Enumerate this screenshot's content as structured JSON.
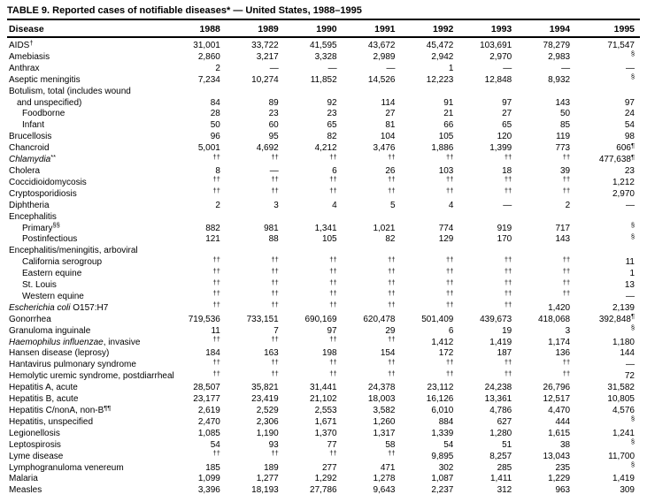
{
  "title": "TABLE 9. Reported cases of notifiable diseases* — United States, 1988–1995",
  "colors": {
    "text": "#000000",
    "background": "#ffffff",
    "rule": "#000000"
  },
  "table": {
    "columns": [
      "Disease",
      "1988",
      "1989",
      "1990",
      "1991",
      "1992",
      "1993",
      "1994",
      "1995"
    ],
    "rows": [
      {
        "label": "AIDS†",
        "values": [
          "31,001",
          "33,722",
          "41,595",
          "43,672",
          "45,472",
          "103,691",
          "78,279",
          "71,547"
        ]
      },
      {
        "label": "Amebiasis",
        "values": [
          "2,860",
          "3,217",
          "3,328",
          "2,989",
          "2,942",
          "2,970",
          "2,983",
          "§"
        ]
      },
      {
        "label": "Anthrax",
        "values": [
          "2",
          "—",
          "—",
          "—",
          "1",
          "—",
          "—",
          "—"
        ]
      },
      {
        "label": "Aseptic meningitis",
        "values": [
          "7,234",
          "10,274",
          "11,852",
          "14,526",
          "12,223",
          "12,848",
          "8,932",
          "§"
        ]
      },
      {
        "label": "Botulism, total (includes wound",
        "label2": "and unspecified)",
        "values": [
          "84",
          "89",
          "92",
          "114",
          "91",
          "97",
          "143",
          "97"
        ]
      },
      {
        "label": "Foodborne",
        "indent": 1,
        "values": [
          "28",
          "23",
          "23",
          "27",
          "21",
          "27",
          "50",
          "24"
        ]
      },
      {
        "label": "Infant",
        "indent": 1,
        "values": [
          "50",
          "60",
          "65",
          "81",
          "66",
          "65",
          "85",
          "54"
        ]
      },
      {
        "label": "Brucellosis",
        "values": [
          "96",
          "95",
          "82",
          "104",
          "105",
          "120",
          "119",
          "98"
        ]
      },
      {
        "label": "Chancroid",
        "values": [
          "5,001",
          "4,692",
          "4,212",
          "3,476",
          "1,886",
          "1,399",
          "773",
          "606¶"
        ]
      },
      {
        "italic": "Chlamydia",
        "label": "**",
        "values": [
          "††",
          "††",
          "††",
          "††",
          "††",
          "††",
          "††",
          "477,638¶"
        ]
      },
      {
        "label": "Cholera",
        "values": [
          "8",
          "—",
          "6",
          "26",
          "103",
          "18",
          "39",
          "23"
        ]
      },
      {
        "label": "Coccidioidomycosis",
        "values": [
          "††",
          "††",
          "††",
          "††",
          "††",
          "††",
          "††",
          "1,212"
        ]
      },
      {
        "label": "Cryptosporidiosis",
        "values": [
          "††",
          "††",
          "††",
          "††",
          "††",
          "††",
          "††",
          "2,970"
        ]
      },
      {
        "label": "Diphtheria",
        "values": [
          "2",
          "3",
          "4",
          "5",
          "4",
          "—",
          "2",
          "—"
        ]
      },
      {
        "label": "Encephalitis",
        "values": []
      },
      {
        "label": "Primary§§",
        "indent": 1,
        "values": [
          "882",
          "981",
          "1,341",
          "1,021",
          "774",
          "919",
          "717",
          "§"
        ]
      },
      {
        "label": "Postinfectious",
        "indent": 1,
        "values": [
          "121",
          "88",
          "105",
          "82",
          "129",
          "170",
          "143",
          "§"
        ]
      },
      {
        "label": "Encephalitis/meningitis, arboviral",
        "values": []
      },
      {
        "label": "California serogroup",
        "indent": 1,
        "values": [
          "††",
          "††",
          "††",
          "††",
          "††",
          "††",
          "††",
          "11"
        ]
      },
      {
        "label": "Eastern equine",
        "indent": 1,
        "values": [
          "††",
          "††",
          "††",
          "††",
          "††",
          "††",
          "††",
          "1"
        ]
      },
      {
        "label": "St. Louis",
        "indent": 1,
        "values": [
          "††",
          "††",
          "††",
          "††",
          "††",
          "††",
          "††",
          "13"
        ]
      },
      {
        "label": "Western equine",
        "indent": 1,
        "values": [
          "††",
          "††",
          "††",
          "††",
          "††",
          "††",
          "††",
          "—"
        ]
      },
      {
        "italic": "Escherichia coli",
        "label": " O157:H7",
        "values": [
          "††",
          "††",
          "††",
          "††",
          "††",
          "††",
          "1,420",
          "2,139"
        ]
      },
      {
        "label": "Gonorrhea",
        "values": [
          "719,536",
          "733,151",
          "690,169",
          "620,478",
          "501,409",
          "439,673",
          "418,068",
          "392,848¶"
        ]
      },
      {
        "label": "Granuloma inguinale",
        "values": [
          "11",
          "7",
          "97",
          "29",
          "6",
          "19",
          "3",
          "§"
        ]
      },
      {
        "italic": "Haemophilus influenzae",
        "label": ", invasive",
        "values": [
          "††",
          "††",
          "††",
          "††",
          "1,412",
          "1,419",
          "1,174",
          "1,180"
        ]
      },
      {
        "label": "Hansen disease (leprosy)",
        "values": [
          "184",
          "163",
          "198",
          "154",
          "172",
          "187",
          "136",
          "144"
        ]
      },
      {
        "label": "Hantavirus pulmonary syndrome",
        "values": [
          "††",
          "††",
          "††",
          "††",
          "††",
          "††",
          "††",
          "—"
        ]
      },
      {
        "label": "Hemolytic uremic syndrome, postdiarrheal",
        "values": [
          "††",
          "††",
          "††",
          "††",
          "††",
          "††",
          "††",
          "72"
        ]
      },
      {
        "label": "Hepatitis A, acute",
        "values": [
          "28,507",
          "35,821",
          "31,441",
          "24,378",
          "23,112",
          "24,238",
          "26,796",
          "31,582"
        ]
      },
      {
        "label": "Hepatitis B, acute",
        "values": [
          "23,177",
          "23,419",
          "21,102",
          "18,003",
          "16,126",
          "13,361",
          "12,517",
          "10,805"
        ]
      },
      {
        "label": "Hepatitis C/nonA, non-B¶¶",
        "values": [
          "2,619",
          "2,529",
          "2,553",
          "3,582",
          "6,010",
          "4,786",
          "4,470",
          "4,576"
        ]
      },
      {
        "label": "Hepatitis, unspecified",
        "values": [
          "2,470",
          "2,306",
          "1,671",
          "1,260",
          "884",
          "627",
          "444",
          "§"
        ]
      },
      {
        "label": "Legionellosis",
        "values": [
          "1,085",
          "1,190",
          "1,370",
          "1,317",
          "1,339",
          "1,280",
          "1,615",
          "1,241"
        ]
      },
      {
        "label": "Leptospirosis",
        "values": [
          "54",
          "93",
          "77",
          "58",
          "54",
          "51",
          "38",
          "§"
        ]
      },
      {
        "label": "Lyme disease",
        "values": [
          "††",
          "††",
          "††",
          "††",
          "9,895",
          "8,257",
          "13,043",
          "11,700"
        ]
      },
      {
        "label": "Lymphogranuloma venereum",
        "values": [
          "185",
          "189",
          "277",
          "471",
          "302",
          "285",
          "235",
          "§"
        ]
      },
      {
        "label": "Malaria",
        "values": [
          "1,099",
          "1,277",
          "1,292",
          "1,278",
          "1,087",
          "1,411",
          "1,229",
          "1,419"
        ]
      },
      {
        "label": "Measles",
        "values": [
          "3,396",
          "18,193",
          "27,786",
          "9,643",
          "2,237",
          "312",
          "963",
          "309"
        ]
      }
    ]
  }
}
